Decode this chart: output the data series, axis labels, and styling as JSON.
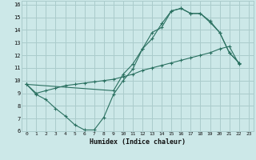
{
  "xlabel": "Humidex (Indice chaleur)",
  "bg_color": "#cce8e8",
  "grid_color": "#aacccc",
  "line_color": "#2a7060",
  "xlim": [
    -0.5,
    23.5
  ],
  "ylim": [
    6,
    16.3
  ],
  "xticks": [
    0,
    1,
    2,
    3,
    4,
    5,
    6,
    7,
    8,
    9,
    10,
    11,
    12,
    13,
    14,
    15,
    16,
    17,
    18,
    19,
    20,
    21,
    22,
    23
  ],
  "yticks": [
    6,
    7,
    8,
    9,
    10,
    11,
    12,
    13,
    14,
    15,
    16
  ],
  "line1_x": [
    0,
    1,
    2,
    3,
    4,
    5,
    6,
    7,
    8,
    9,
    10,
    11,
    12,
    13,
    14,
    15,
    16,
    17,
    18,
    19,
    20,
    21,
    22
  ],
  "line1_y": [
    9.7,
    8.9,
    8.5,
    7.8,
    7.2,
    6.5,
    6.1,
    6.1,
    7.1,
    8.9,
    10.0,
    10.9,
    12.5,
    13.8,
    14.2,
    15.5,
    15.7,
    15.3,
    15.3,
    14.6,
    13.8,
    12.2,
    11.4
  ],
  "line2_x": [
    0,
    1,
    2,
    3,
    4,
    5,
    6,
    7,
    8,
    9,
    10,
    11,
    12,
    13,
    14,
    15,
    16,
    17,
    18,
    19,
    20,
    21,
    22
  ],
  "line2_y": [
    9.7,
    9.0,
    9.2,
    9.4,
    9.6,
    9.7,
    9.8,
    9.9,
    10.0,
    10.1,
    10.3,
    10.5,
    10.8,
    11.0,
    11.2,
    11.4,
    11.6,
    11.8,
    12.0,
    12.2,
    12.5,
    12.7,
    11.3
  ],
  "line3_x": [
    0,
    9,
    10,
    11,
    12,
    13,
    14,
    15,
    16,
    17,
    18,
    19,
    20,
    21,
    22
  ],
  "line3_y": [
    9.7,
    9.2,
    10.5,
    11.3,
    12.5,
    13.3,
    14.5,
    15.5,
    15.7,
    15.3,
    15.3,
    14.7,
    13.8,
    12.2,
    11.4
  ]
}
